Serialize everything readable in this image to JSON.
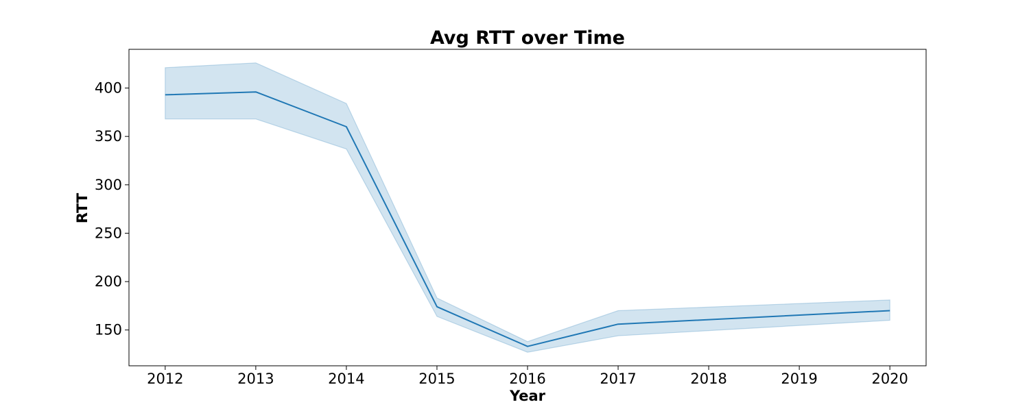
{
  "chart_data": {
    "type": "line",
    "title": "Avg RTT over Time",
    "xlabel": "Year",
    "ylabel": "RTT",
    "xlim": [
      2011.6,
      2020.4
    ],
    "ylim": [
      113,
      440
    ],
    "x_ticks": [
      2012,
      2013,
      2014,
      2015,
      2016,
      2017,
      2018,
      2019,
      2020
    ],
    "y_ticks": [
      150,
      200,
      250,
      300,
      350,
      400
    ],
    "grid": false,
    "series": [
      {
        "color": "#1f77b4",
        "band_color": "#1f77b4",
        "band_opacity": 0.2,
        "points": [
          {
            "x": 2012,
            "y": 393,
            "lower": 368,
            "upper": 421
          },
          {
            "x": 2013,
            "y": 396,
            "lower": 368,
            "upper": 426
          },
          {
            "x": 2014,
            "y": 360,
            "lower": 337,
            "upper": 384
          },
          {
            "x": 2015,
            "y": 174,
            "lower": 164,
            "upper": 183
          },
          {
            "x": 2016,
            "y": 133,
            "lower": 127,
            "upper": 138
          },
          {
            "x": 2017,
            "y": 156,
            "lower": 144,
            "upper": 170
          },
          {
            "x": 2020,
            "y": 170,
            "lower": 160,
            "upper": 181
          }
        ]
      }
    ]
  }
}
